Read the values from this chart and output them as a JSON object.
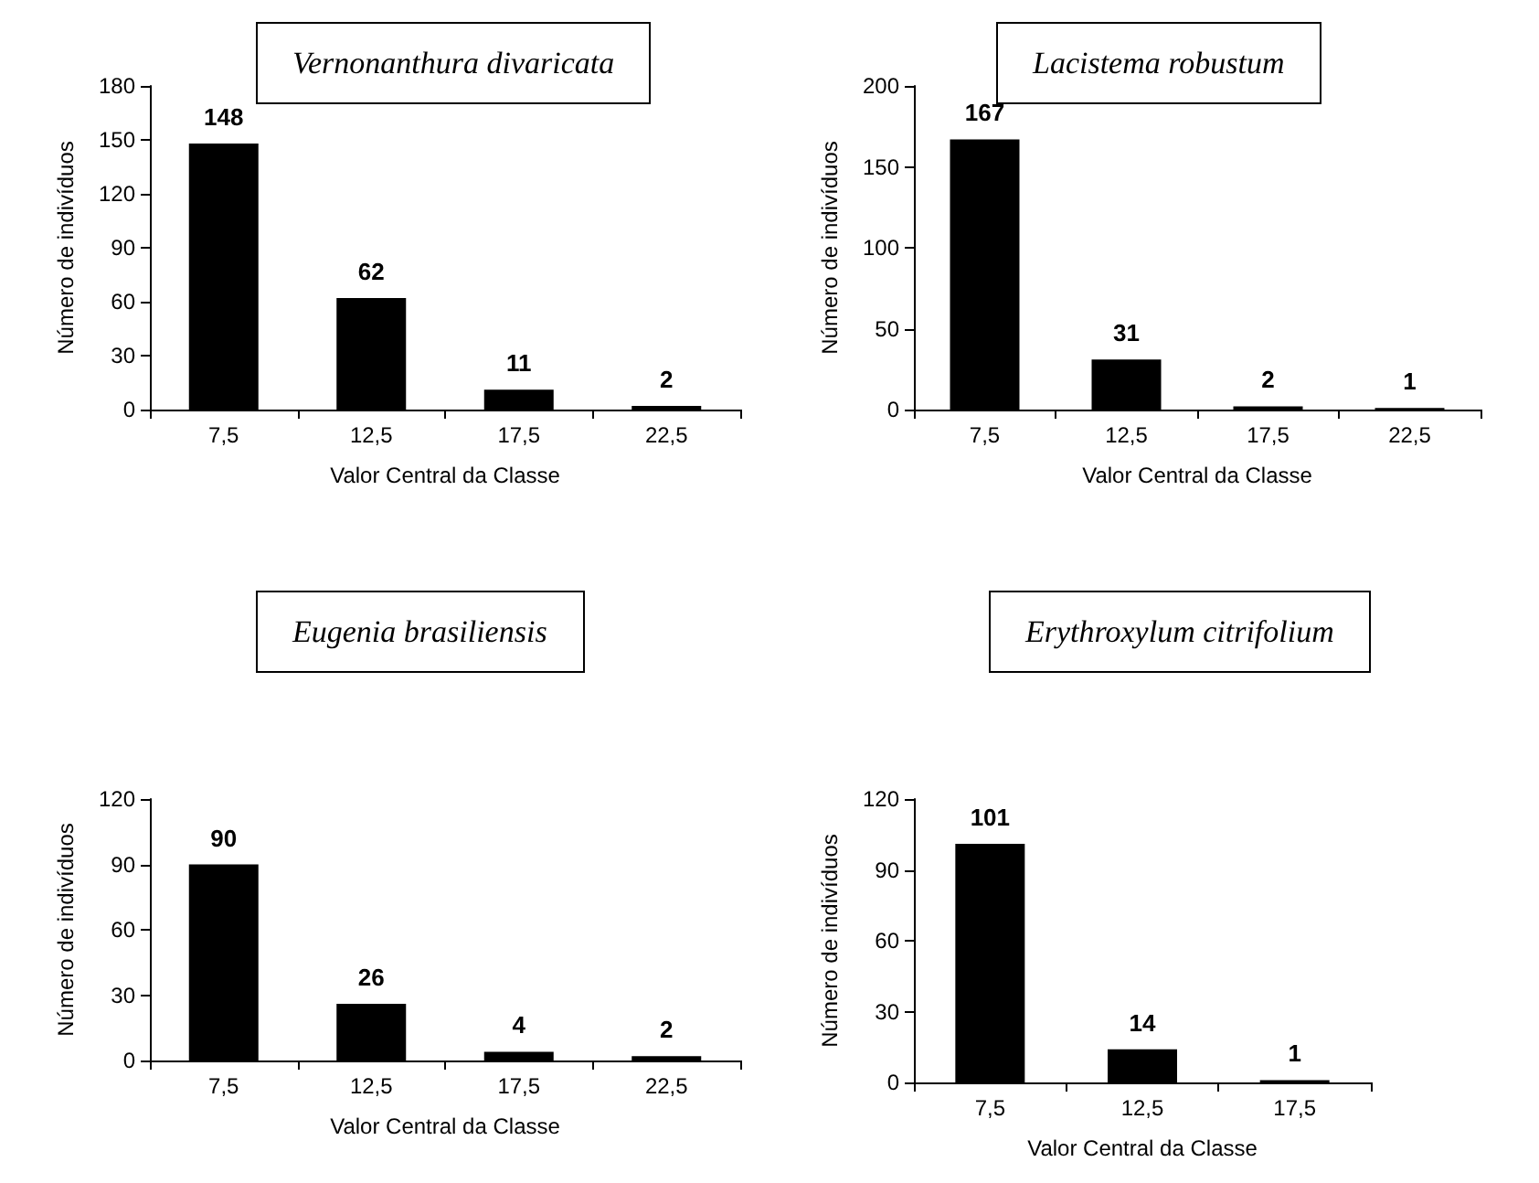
{
  "chart_data": [
    {
      "type": "bar",
      "title": "Vernonanthura divaricata",
      "xlabel": "Valor Central da Classe",
      "ylabel": "Número de indivíduos",
      "categories": [
        "7,5",
        "12,5",
        "17,5",
        "22,5"
      ],
      "values": [
        148,
        62,
        11,
        2
      ],
      "color": "#000000",
      "ylim": [
        0,
        180
      ],
      "yticks": [
        0,
        30,
        60,
        90,
        120,
        150,
        180
      ],
      "data_labels": true,
      "grid": false
    },
    {
      "type": "bar",
      "title": "Lacistema robustum",
      "xlabel": "Valor Central da Classe",
      "ylabel": "Número de indivíduos",
      "categories": [
        "7,5",
        "12,5",
        "17,5",
        "22,5"
      ],
      "values": [
        167,
        31,
        2,
        1
      ],
      "color": "#000000",
      "ylim": [
        0,
        200
      ],
      "yticks": [
        0,
        50,
        100,
        150,
        200
      ],
      "data_labels": true,
      "grid": false
    },
    {
      "type": "bar",
      "title": "Eugenia brasiliensis",
      "xlabel": "Valor Central da Classe",
      "ylabel": "Número de indivíduos",
      "categories": [
        "7,5",
        "12,5",
        "17,5",
        "22,5"
      ],
      "values": [
        90,
        26,
        4,
        2
      ],
      "color": "#000000",
      "ylim": [
        0,
        120
      ],
      "yticks": [
        0,
        30,
        60,
        90,
        120
      ],
      "data_labels": true,
      "grid": false
    },
    {
      "type": "bar",
      "title": "Erythroxylum citrifolium",
      "xlabel": "Valor Central da Classe",
      "ylabel": "Número de indivíduos",
      "categories": [
        "7,5",
        "12,5",
        "17,5"
      ],
      "values": [
        101,
        14,
        1
      ],
      "color": "#000000",
      "ylim": [
        0,
        120
      ],
      "yticks": [
        0,
        30,
        60,
        90,
        120
      ],
      "data_labels": true,
      "grid": false
    }
  ]
}
